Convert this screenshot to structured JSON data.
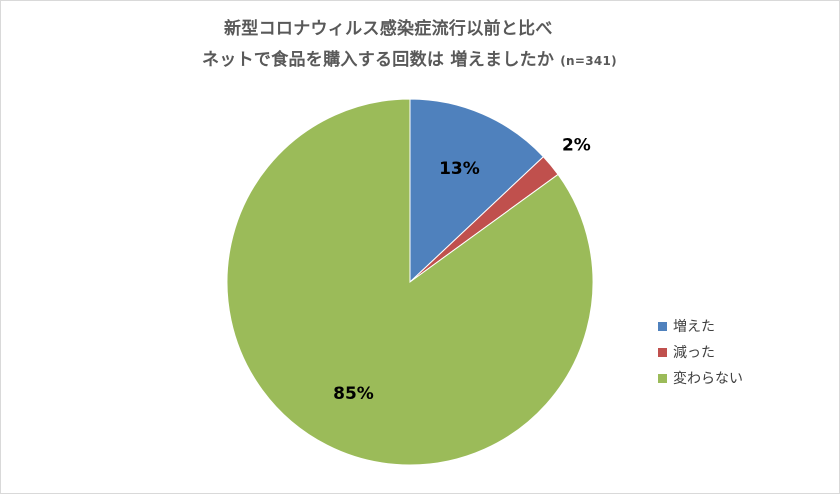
{
  "chart_data": {
    "type": "pie",
    "title": "新型コロナウィルス感染症流行以前と比べ",
    "subtitle": "ネットで食品を購入する回数は 増えましたか",
    "note": "(n=341)",
    "categories": [
      "増えた",
      "減った",
      "変わらない"
    ],
    "values": [
      13,
      2,
      85
    ],
    "data_labels": [
      "13%",
      "2%",
      "85%"
    ],
    "colors": [
      "#4f81bd",
      "#c0504d",
      "#9bbb59"
    ],
    "legend_position": "right"
  }
}
